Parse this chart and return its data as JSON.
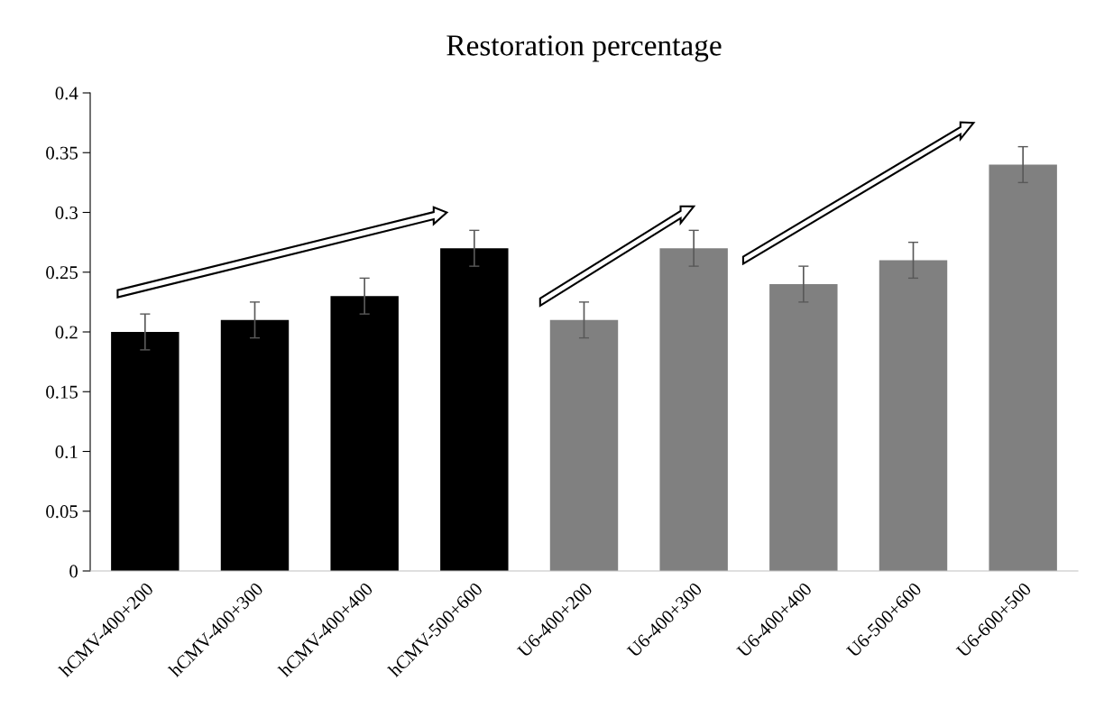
{
  "chart_data": {
    "type": "bar",
    "title": "Restoration percentage",
    "categories": [
      "hCMV-400+200",
      "hCMV-400+300",
      "hCMV-400+400",
      "hCMV-500+600",
      "U6-400+200",
      "U6-400+300",
      "U6-400+400",
      "U6-500+600",
      "U6-600+500"
    ],
    "values": [
      0.2,
      0.21,
      0.23,
      0.27,
      0.21,
      0.27,
      0.24,
      0.26,
      0.34
    ],
    "colors": [
      "#000000",
      "#000000",
      "#000000",
      "#000000",
      "#808080",
      "#808080",
      "#808080",
      "#808080",
      "#808080"
    ],
    "errors": [
      0.015,
      0.015,
      0.015,
      0.015,
      0.015,
      0.015,
      0.015,
      0.015,
      0.015
    ],
    "ylim": [
      0,
      0.4
    ],
    "yticks": [
      0,
      0.05,
      0.1,
      0.15,
      0.2,
      0.25,
      0.3,
      0.35,
      0.4
    ],
    "grid": false,
    "legend": false
  }
}
